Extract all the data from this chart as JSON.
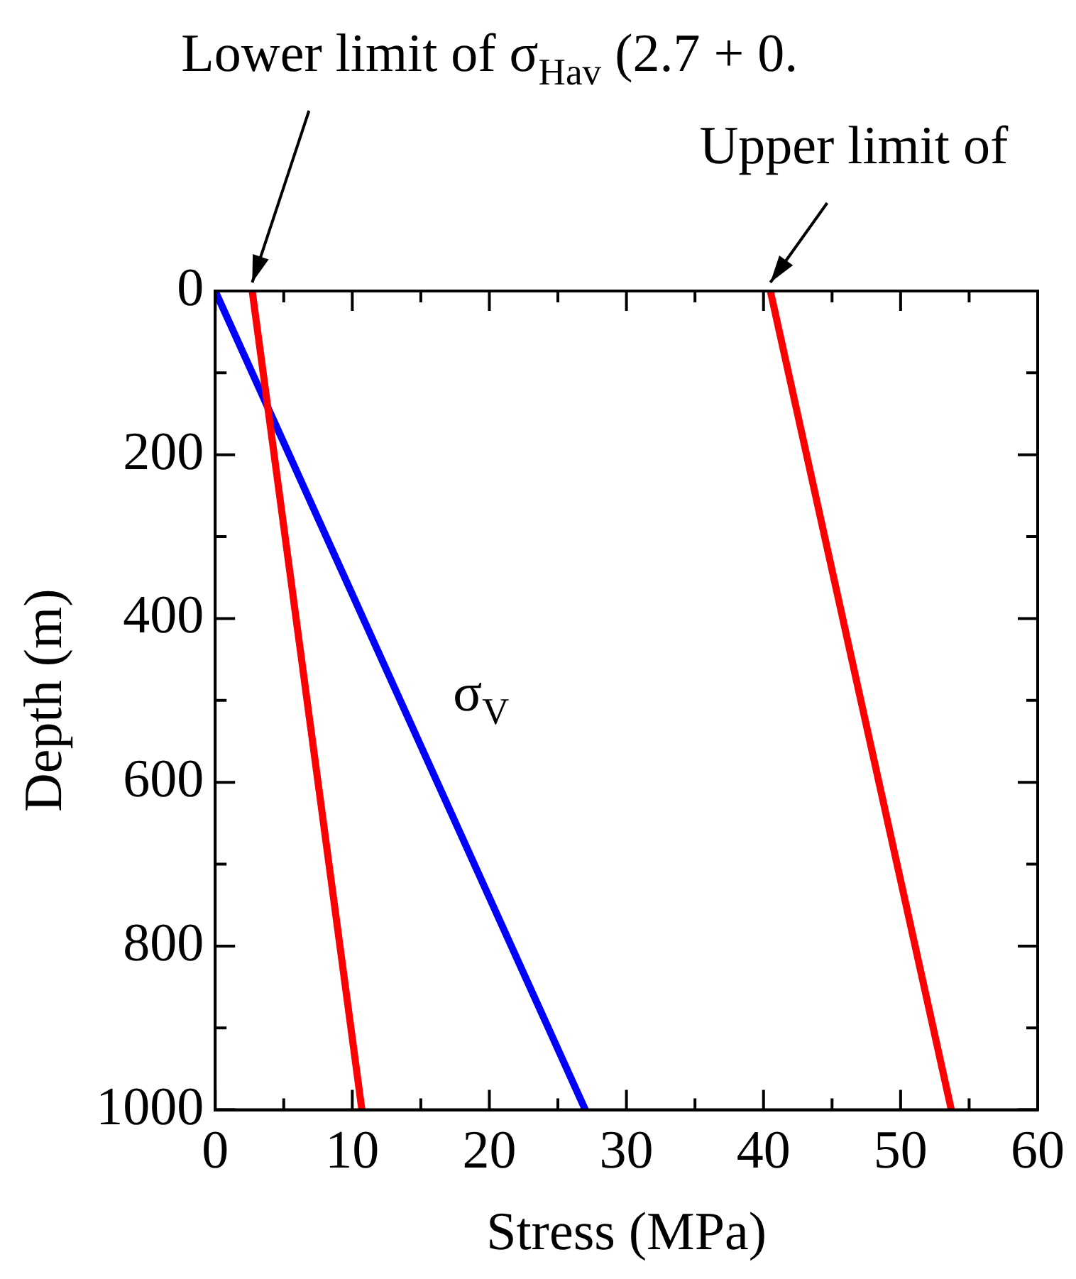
{
  "chart_data": {
    "type": "line",
    "xlabel": "Stress (MPa)",
    "ylabel": "Depth (m)",
    "xlim": [
      0,
      60
    ],
    "ylim": [
      1000,
      0
    ],
    "xticks": [
      0,
      {
        "value": 5,
        "label": null
      },
      10,
      {
        "value": 15,
        "label": null
      },
      20,
      {
        "value": 25,
        "label": null
      },
      30,
      {
        "value": 35,
        "label": null
      },
      40,
      {
        "value": 45,
        "label": null
      },
      50,
      {
        "value": 55,
        "label": null
      },
      60
    ],
    "yticks": [
      0,
      {
        "value": 100,
        "label": null
      },
      200,
      {
        "value": 300,
        "label": null
      },
      400,
      {
        "value": 500,
        "label": null
      },
      600,
      {
        "value": 700,
        "label": null
      },
      800,
      {
        "value": 900,
        "label": null
      },
      1000
    ],
    "grid": false,
    "legend": false,
    "marker": "none",
    "series": [
      {
        "color": "#ff0000",
        "x": [
          2.7,
          10.7
        ],
        "values": [
          0,
          1000
        ]
      },
      {
        "color": "#ff0000",
        "x": [
          40.5,
          53.7
        ],
        "values": [
          0,
          1000
        ]
      },
      {
        "color": "#0000ff",
        "x": [
          0,
          27
        ],
        "values": [
          0,
          1000
        ]
      }
    ],
    "annotations": [
      {
        "text": "Lower limit of σ$_{Hav}$ (2.7 + 0.",
        "x": 2.7,
        "y": 0
      },
      {
        "text": "Upper limit of",
        "x": 40.5,
        "y": 0
      },
      {
        "text": "σ$_{V}$",
        "x": 13.2,
        "y": 490
      }
    ]
  }
}
